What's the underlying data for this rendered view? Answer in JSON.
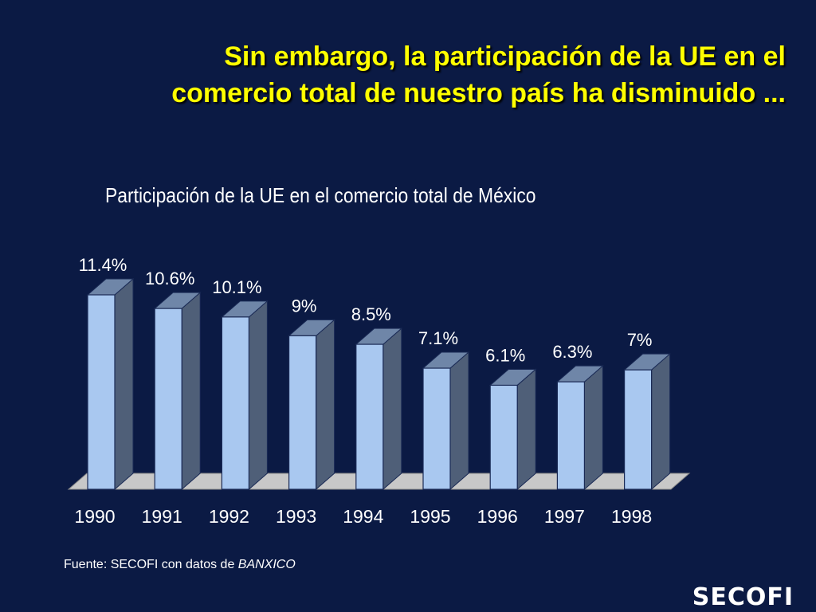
{
  "slide": {
    "title_line1": "Sin embargo, la participación de la UE en el",
    "title_line2": "comercio total de nuestro país ha disminuido ...",
    "source_prefix": "Fuente: SECOFI con datos de ",
    "source_italic": "BANXICO",
    "logo_text": "SECOFI"
  },
  "chart_data": {
    "type": "bar",
    "title": "Participación de la UE en el comercio total de México",
    "categories": [
      "1990",
      "1991",
      "1992",
      "1993",
      "1994",
      "1995",
      "1996",
      "1997",
      "1998"
    ],
    "values": [
      11.4,
      10.6,
      10.1,
      9,
      8.5,
      7.1,
      6.1,
      6.3,
      7
    ],
    "value_labels": [
      "11.4%",
      "10.6%",
      "10.1%",
      "9%",
      "8.5%",
      "7.1%",
      "6.1%",
      "6.3%",
      "7%"
    ],
    "unit": "%",
    "three_d": true,
    "grid": false,
    "legend": "none",
    "colors": {
      "bar_front": "#a9c8f0",
      "bar_side": "#4f5f78",
      "bar_top": "#6f86a8",
      "floor": "#c8c8c8",
      "text": "#ffffff"
    }
  }
}
